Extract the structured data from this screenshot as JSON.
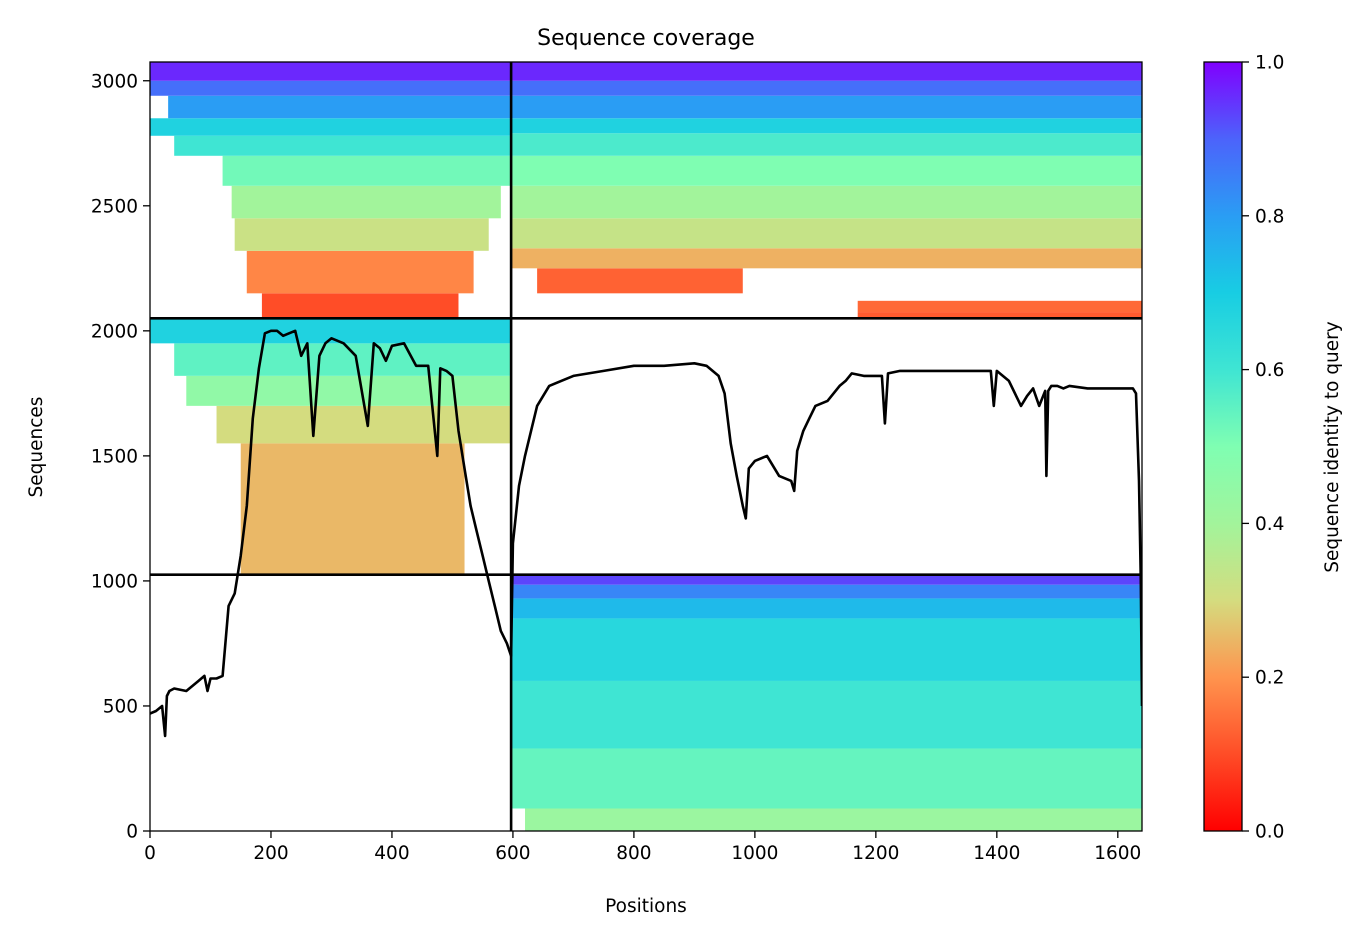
{
  "chart_data": {
    "type": "heatmap",
    "title": "Sequence coverage",
    "xlabel": "Positions",
    "ylabel": "Sequences",
    "xlim": [
      0,
      1640
    ],
    "ylim": [
      0,
      3075
    ],
    "x_ticks": [
      0,
      200,
      400,
      600,
      800,
      1000,
      1200,
      1400,
      1600
    ],
    "y_ticks": [
      0,
      500,
      1000,
      1500,
      2000,
      2500,
      3000
    ],
    "colorbar": {
      "label": "Sequence identity to query",
      "colormap": "rainbow_r",
      "range": [
        0.0,
        1.0
      ],
      "ticks": [
        "0.0",
        "0.2",
        "0.4",
        "0.6",
        "0.8",
        "1.0"
      ]
    },
    "block_boundaries": {
      "x": [
        597
      ],
      "y": [
        1025,
        2050
      ]
    },
    "blocks": [
      {
        "x_range": [
          0,
          597
        ],
        "y_range": [
          2050,
          3075
        ],
        "filled": true,
        "rows": [
          {
            "y": [
              2050,
              2150
            ],
            "x": [
              185,
              510
            ],
            "identity": 0.1
          },
          {
            "y": [
              2150,
              2320
            ],
            "x": [
              160,
              535
            ],
            "identity": 0.18
          },
          {
            "y": [
              2320,
              2450
            ],
            "x": [
              140,
              560
            ],
            "identity": 0.32
          },
          {
            "y": [
              2450,
              2580
            ],
            "x": [
              135,
              580
            ],
            "identity": 0.4
          },
          {
            "y": [
              2580,
              2700
            ],
            "x": [
              120,
              597
            ],
            "identity": 0.52
          },
          {
            "y": [
              2700,
              2780
            ],
            "x": [
              40,
              597
            ],
            "identity": 0.6
          },
          {
            "y": [
              2780,
              2850
            ],
            "x": [
              0,
              597
            ],
            "identity": 0.68
          },
          {
            "y": [
              2850,
              2940
            ],
            "x": [
              30,
              597
            ],
            "identity": 0.8
          },
          {
            "y": [
              2940,
              3000
            ],
            "x": [
              0,
              597
            ],
            "identity": 0.88
          },
          {
            "y": [
              3000,
              3075
            ],
            "x": [
              0,
              597
            ],
            "identity": 0.96
          }
        ]
      },
      {
        "x_range": [
          597,
          1640
        ],
        "y_range": [
          2050,
          3075
        ],
        "filled": true,
        "rows": [
          {
            "y": [
              2050,
              2075
            ],
            "x": [
              1170,
              1640
            ],
            "identity": 0.12
          },
          {
            "y": [
              2075,
              2120
            ],
            "x": [
              1170,
              1640
            ],
            "identity": 0.14
          },
          {
            "y": [
              2150,
              2250
            ],
            "x": [
              640,
              980
            ],
            "identity": 0.13
          },
          {
            "y": [
              2250,
              2330
            ],
            "x": [
              597,
              1640
            ],
            "identity": 0.24
          },
          {
            "y": [
              2330,
              2450
            ],
            "x": [
              597,
              1640
            ],
            "identity": 0.33
          },
          {
            "y": [
              2450,
              2580
            ],
            "x": [
              597,
              1640
            ],
            "identity": 0.4
          },
          {
            "y": [
              2580,
              2700
            ],
            "x": [
              597,
              1640
            ],
            "identity": 0.5
          },
          {
            "y": [
              2700,
              2790
            ],
            "x": [
              597,
              1640
            ],
            "identity": 0.58
          },
          {
            "y": [
              2790,
              2850
            ],
            "x": [
              597,
              1640
            ],
            "identity": 0.68
          },
          {
            "y": [
              2850,
              2940
            ],
            "x": [
              597,
              1640
            ],
            "identity": 0.8
          },
          {
            "y": [
              2940,
              3000
            ],
            "x": [
              597,
              1640
            ],
            "identity": 0.88
          },
          {
            "y": [
              3000,
              3075
            ],
            "x": [
              597,
              1640
            ],
            "identity": 0.96
          }
        ]
      },
      {
        "x_range": [
          0,
          597
        ],
        "y_range": [
          1025,
          2050
        ],
        "filled": true,
        "rows": [
          {
            "y": [
              1025,
              1550
            ],
            "x": [
              150,
              520
            ],
            "identity": 0.25
          },
          {
            "y": [
              1550,
              1700
            ],
            "x": [
              110,
              597
            ],
            "identity": 0.3
          },
          {
            "y": [
              1700,
              1820
            ],
            "x": [
              60,
              597
            ],
            "identity": 0.45
          },
          {
            "y": [
              1820,
              1950
            ],
            "x": [
              40,
              597
            ],
            "identity": 0.55
          },
          {
            "y": [
              1950,
              2050
            ],
            "x": [
              0,
              597
            ],
            "identity": 0.68
          }
        ]
      },
      {
        "x_range": [
          597,
          1640
        ],
        "y_range": [
          1025,
          2050
        ],
        "filled": false,
        "rows": []
      },
      {
        "x_range": [
          0,
          597
        ],
        "y_range": [
          0,
          1025
        ],
        "filled": false,
        "rows": []
      },
      {
        "x_range": [
          597,
          1640
        ],
        "y_range": [
          0,
          1025
        ],
        "filled": true,
        "rows": [
          {
            "y": [
              0,
              90
            ],
            "x": [
              620,
              1640
            ],
            "identity": 0.42
          },
          {
            "y": [
              90,
              330
            ],
            "x": [
              597,
              1640
            ],
            "identity": 0.54
          },
          {
            "y": [
              330,
              600
            ],
            "x": [
              597,
              1640
            ],
            "identity": 0.6
          },
          {
            "y": [
              600,
              850
            ],
            "x": [
              597,
              1640
            ],
            "identity": 0.66
          },
          {
            "y": [
              850,
              930
            ],
            "x": [
              597,
              1640
            ],
            "identity": 0.74
          },
          {
            "y": [
              930,
              985
            ],
            "x": [
              597,
              1640
            ],
            "identity": 0.84
          },
          {
            "y": [
              985,
              1025
            ],
            "x": [
              597,
              1640
            ],
            "identity": 0.93
          }
        ]
      }
    ],
    "series": [
      {
        "type": "line",
        "color": "#000000",
        "x": [
          0,
          10,
          20,
          25,
          28,
          32,
          40,
          60,
          80,
          90,
          95,
          100,
          110,
          120,
          130,
          140,
          150,
          160,
          170,
          180,
          190,
          200,
          210,
          220,
          230,
          240,
          250,
          260,
          270,
          280,
          290,
          300,
          320,
          340,
          360,
          370,
          380,
          390,
          400,
          420,
          440,
          460,
          475,
          480,
          490,
          500,
          510,
          520,
          530,
          540,
          550,
          560,
          570,
          580,
          590,
          597,
          600,
          610,
          620,
          640,
          660,
          700,
          750,
          800,
          850,
          900,
          920,
          940,
          950,
          960,
          970,
          980,
          985,
          990,
          1000,
          1020,
          1040,
          1060,
          1065,
          1070,
          1080,
          1090,
          1100,
          1120,
          1140,
          1150,
          1160,
          1180,
          1200,
          1210,
          1215,
          1220,
          1240,
          1260,
          1300,
          1350,
          1390,
          1395,
          1400,
          1420,
          1440,
          1450,
          1460,
          1470,
          1480,
          1482,
          1485,
          1490,
          1500,
          1510,
          1520,
          1550,
          1600,
          1625,
          1630,
          1635,
          1638,
          1640
        ],
        "y": [
          470,
          480,
          500,
          380,
          540,
          560,
          570,
          560,
          600,
          620,
          560,
          610,
          610,
          620,
          900,
          950,
          1100,
          1300,
          1650,
          1850,
          1990,
          2000,
          2000,
          1980,
          1990,
          2000,
          1900,
          1950,
          1580,
          1900,
          1950,
          1970,
          1950,
          1900,
          1620,
          1950,
          1930,
          1880,
          1940,
          1950,
          1860,
          1860,
          1500,
          1850,
          1840,
          1820,
          1600,
          1450,
          1300,
          1200,
          1100,
          1000,
          900,
          800,
          750,
          700,
          1150,
          1380,
          1500,
          1700,
          1780,
          1820,
          1840,
          1860,
          1860,
          1870,
          1860,
          1820,
          1750,
          1550,
          1420,
          1300,
          1250,
          1450,
          1480,
          1500,
          1420,
          1400,
          1360,
          1520,
          1600,
          1650,
          1700,
          1720,
          1780,
          1800,
          1830,
          1820,
          1820,
          1820,
          1630,
          1830,
          1840,
          1840,
          1840,
          1840,
          1840,
          1700,
          1840,
          1800,
          1700,
          1740,
          1770,
          1700,
          1760,
          1420,
          1760,
          1780,
          1780,
          1770,
          1780,
          1770,
          1770,
          1770,
          1750,
          1400,
          1000,
          500
        ]
      }
    ]
  }
}
